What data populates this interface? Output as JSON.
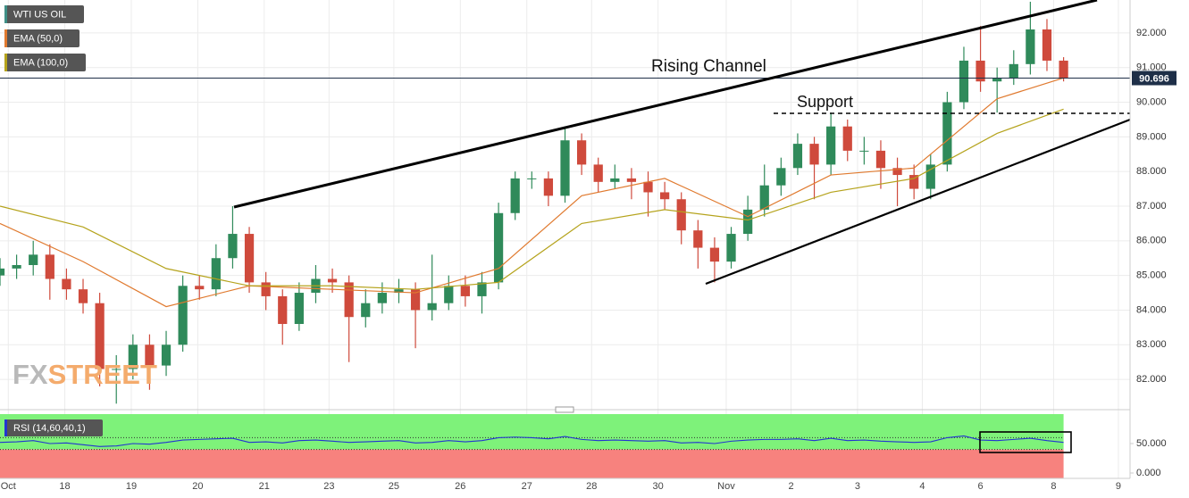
{
  "chart_data": [
    {
      "type": "candlestick",
      "title": "WTI US OIL",
      "x": [
        0,
        1,
        2,
        3,
        4,
        5,
        6,
        7,
        8,
        9,
        10,
        11,
        12,
        13,
        14,
        15,
        16,
        17,
        18,
        19,
        20,
        21,
        22,
        23,
        24,
        25,
        26,
        27,
        28,
        29,
        30,
        31,
        32,
        33,
        34,
        35,
        36,
        37,
        38,
        39,
        40,
        41,
        42,
        43,
        44,
        45,
        46,
        47,
        48,
        49,
        50,
        51,
        52,
        53,
        54,
        55,
        56,
        57,
        58,
        59,
        60,
        61,
        62,
        63,
        64
      ],
      "open": [
        85.0,
        85.2,
        85.3,
        85.6,
        84.9,
        84.6,
        84.2,
        82.3,
        82.3,
        83.0,
        82.4,
        83.0,
        84.7,
        84.6,
        85.5,
        86.2,
        84.8,
        84.4,
        83.6,
        84.5,
        84.9,
        84.8,
        83.8,
        84.2,
        84.5,
        84.6,
        84.0,
        84.2,
        84.7,
        84.4,
        84.8,
        86.8,
        87.8,
        87.8,
        87.3,
        88.9,
        88.2,
        87.7,
        87.8,
        87.7,
        87.4,
        87.2,
        86.3,
        85.8,
        85.4,
        86.2,
        86.9,
        87.6,
        88.1,
        88.8,
        88.2,
        89.3,
        88.6,
        88.6,
        88.1,
        87.9,
        87.5,
        88.2,
        90.0,
        91.2,
        90.6,
        90.7,
        91.1,
        92.1,
        91.2
      ],
      "high": [
        85.5,
        85.6,
        86.0,
        85.9,
        85.2,
        84.9,
        84.5,
        82.7,
        83.3,
        83.3,
        83.4,
        85.0,
        85.0,
        85.9,
        87.0,
        86.4,
        85.1,
        84.6,
        84.8,
        85.3,
        85.2,
        85.0,
        84.6,
        84.8,
        84.9,
        84.8,
        85.6,
        85.0,
        85.0,
        85.1,
        87.1,
        88.0,
        88.0,
        88.0,
        89.3,
        89.1,
        88.4,
        88.2,
        88.1,
        88.0,
        87.7,
        87.4,
        86.6,
        86.1,
        86.4,
        87.3,
        88.2,
        88.4,
        89.1,
        89.0,
        89.7,
        89.5,
        89.0,
        88.9,
        88.4,
        88.2,
        88.5,
        90.3,
        91.6,
        92.2,
        91.0,
        91.5,
        92.9,
        92.4,
        91.3
      ],
      "low": [
        84.7,
        84.9,
        85.0,
        84.3,
        84.3,
        83.9,
        81.8,
        81.3,
        82.0,
        81.7,
        82.1,
        82.8,
        84.3,
        84.4,
        85.2,
        84.5,
        84.0,
        83.0,
        83.4,
        84.2,
        84.5,
        82.5,
        83.5,
        83.9,
        84.2,
        82.9,
        83.7,
        84.0,
        84.1,
        83.9,
        84.6,
        86.6,
        87.5,
        87.0,
        87.1,
        87.9,
        87.4,
        87.5,
        87.2,
        86.7,
        86.9,
        85.9,
        85.2,
        84.8,
        85.2,
        86.0,
        86.7,
        87.3,
        87.9,
        87.2,
        87.9,
        88.3,
        88.2,
        87.5,
        87.0,
        87.2,
        87.2,
        88.0,
        89.8,
        90.3,
        89.7,
        90.5,
        90.8,
        90.9,
        90.6
      ],
      "close": [
        85.2,
        85.3,
        85.6,
        84.9,
        84.6,
        84.2,
        82.3,
        82.3,
        83.0,
        82.4,
        83.0,
        84.7,
        84.6,
        85.5,
        86.2,
        84.8,
        84.4,
        83.6,
        84.5,
        84.9,
        84.8,
        83.8,
        84.2,
        84.5,
        84.6,
        84.0,
        84.2,
        84.7,
        84.4,
        84.8,
        86.8,
        87.8,
        87.8,
        87.3,
        88.9,
        88.2,
        87.7,
        87.8,
        87.7,
        87.4,
        87.2,
        86.3,
        85.8,
        85.4,
        86.2,
        86.9,
        87.6,
        88.1,
        88.8,
        88.2,
        89.3,
        88.6,
        88.6,
        88.1,
        87.9,
        87.5,
        88.2,
        90.0,
        91.2,
        90.6,
        90.7,
        91.1,
        92.1,
        91.2,
        90.7
      ],
      "up_color": "#2f8a5a",
      "down_color": "#cf4a3c",
      "title_color": "#3f8f86",
      "series": [
        {
          "name": "EMA (50,0)",
          "color": "#e07a2f",
          "x": [
            0,
            5,
            10,
            15,
            20,
            25,
            30,
            35,
            40,
            45,
            50,
            55,
            60,
            64
          ],
          "values": [
            86.5,
            85.4,
            84.1,
            84.7,
            84.6,
            84.5,
            85.2,
            87.3,
            87.8,
            86.7,
            87.9,
            88.1,
            90.1,
            90.7
          ]
        },
        {
          "name": "EMA (100,0)",
          "color": "#b5a31c",
          "x": [
            0,
            5,
            10,
            15,
            20,
            25,
            30,
            35,
            40,
            45,
            50,
            55,
            60,
            64
          ],
          "values": [
            87.0,
            86.4,
            85.2,
            84.7,
            84.7,
            84.6,
            84.8,
            86.5,
            86.9,
            86.6,
            87.4,
            87.8,
            89.1,
            89.8
          ]
        }
      ],
      "xlim": [
        0,
        68
      ],
      "xticks": [
        {
          "value": 0.5,
          "label": "Oct"
        },
        {
          "value": 3.9,
          "label": "18"
        },
        {
          "value": 7.9,
          "label": "19"
        },
        {
          "value": 11.9,
          "label": "20"
        },
        {
          "value": 15.9,
          "label": "21"
        },
        {
          "value": 19.8,
          "label": "23"
        },
        {
          "value": 23.7,
          "label": "25"
        },
        {
          "value": 27.7,
          "label": "26"
        },
        {
          "value": 31.7,
          "label": "27"
        },
        {
          "value": 35.6,
          "label": "28"
        },
        {
          "value": 39.6,
          "label": "30"
        },
        {
          "value": 43.7,
          "label": "Nov"
        },
        {
          "value": 47.6,
          "label": "2"
        },
        {
          "value": 51.6,
          "label": "3"
        },
        {
          "value": 55.5,
          "label": "4"
        },
        {
          "value": 59.0,
          "label": "6"
        },
        {
          "value": 63.4,
          "label": "8"
        },
        {
          "value": 67.3,
          "label": "9"
        }
      ],
      "ylim": [
        81.23,
        92.95
      ],
      "yticks": [
        {
          "value": 82,
          "label": "82.000"
        },
        {
          "value": 83,
          "label": "83.000"
        },
        {
          "value": 84,
          "label": "84.000"
        },
        {
          "value": 85,
          "label": "85.000"
        },
        {
          "value": 86,
          "label": "86.000"
        },
        {
          "value": 87,
          "label": "87.000"
        },
        {
          "value": 88,
          "label": "88.000"
        },
        {
          "value": 89,
          "label": "89.000"
        },
        {
          "value": 90,
          "label": "90.000"
        },
        {
          "value": 91,
          "label": "91.000"
        },
        {
          "value": 92,
          "label": "92.000"
        }
      ],
      "last_price": 90.696,
      "annotations": [
        "Rising Channel",
        "Support"
      ],
      "watermark": [
        "FX",
        "STREET"
      ],
      "grid": true
    },
    {
      "type": "rsi",
      "title": "RSI (14,60,40,1)",
      "x": [
        0,
        1,
        2,
        3,
        4,
        5,
        6,
        7,
        8,
        9,
        10,
        11,
        12,
        13,
        14,
        15,
        16,
        17,
        18,
        19,
        20,
        21,
        22,
        23,
        24,
        25,
        26,
        27,
        28,
        29,
        30,
        31,
        32,
        33,
        34,
        35,
        36,
        37,
        38,
        39,
        40,
        41,
        42,
        43,
        44,
        45,
        46,
        47,
        48,
        49,
        50,
        51,
        52,
        53,
        54,
        55,
        56,
        57,
        58,
        59,
        60,
        61,
        62,
        63,
        64
      ],
      "values": [
        52,
        53,
        55,
        50,
        51,
        48,
        45,
        46,
        50,
        49,
        52,
        56,
        57,
        58,
        59,
        52,
        53,
        51,
        55,
        56,
        54,
        52,
        53,
        54,
        55,
        51,
        52,
        55,
        53,
        55,
        60,
        61,
        60,
        58,
        62,
        57,
        55,
        56,
        55,
        54,
        55,
        51,
        52,
        50,
        54,
        56,
        57,
        57,
        58,
        55,
        59,
        55,
        56,
        54,
        53,
        52,
        53,
        60,
        63,
        56,
        55,
        57,
        59,
        55,
        52
      ],
      "color": "#2335d0",
      "ylim": [
        0,
        100
      ],
      "yticks": [
        {
          "value": 0,
          "label": "0.000"
        },
        {
          "value": 50,
          "label": "50.000"
        }
      ],
      "upper_band": 60,
      "lower_band": 40,
      "upper_color": "#7ef27a",
      "lower_color": "#f7827e"
    }
  ]
}
